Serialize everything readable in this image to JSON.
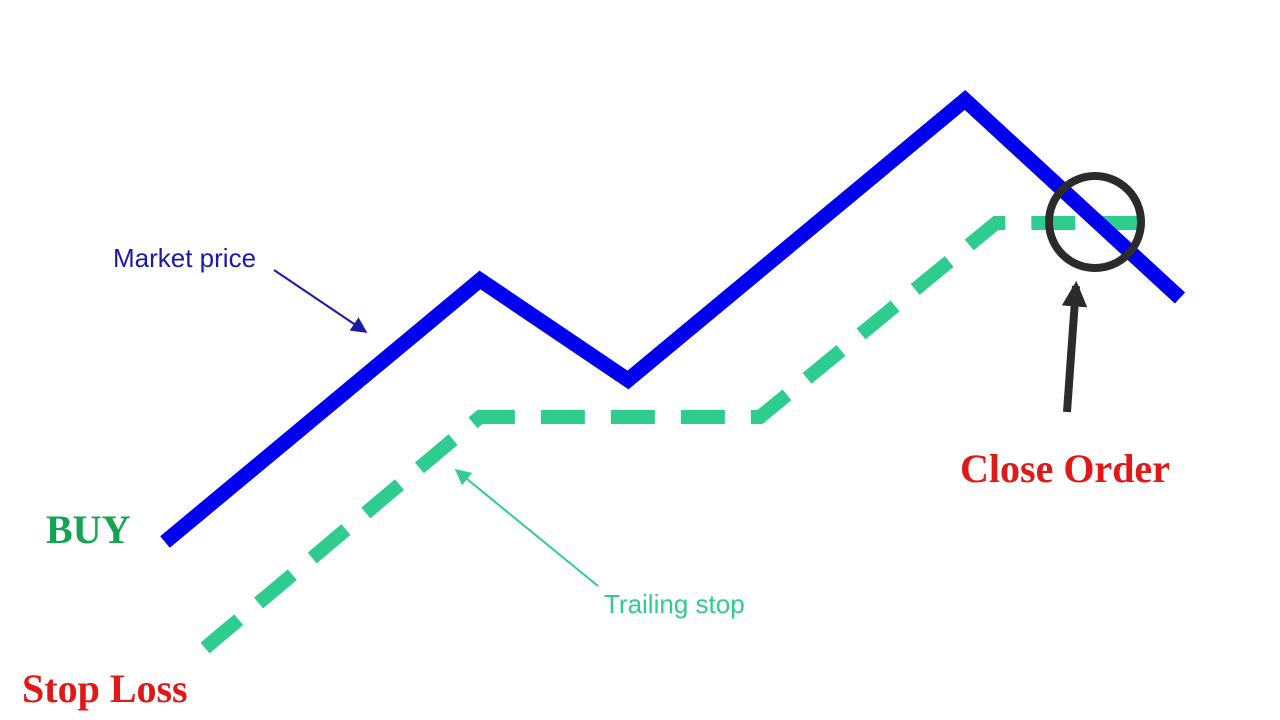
{
  "labels": {
    "market_price": "Market price",
    "trailing_stop": "Trailing stop",
    "buy": "BUY",
    "stop_loss": "Stop Loss",
    "close_order": "Close Order"
  },
  "colors": {
    "market_price_line": "#0000ee",
    "market_price_text": "#1a1aa6",
    "trailing_stop": "#2ecc8f",
    "buy": "#13a352",
    "stop_loss": "#e01818",
    "close_order": "#e01818",
    "marker": "#2b2b2b"
  }
}
